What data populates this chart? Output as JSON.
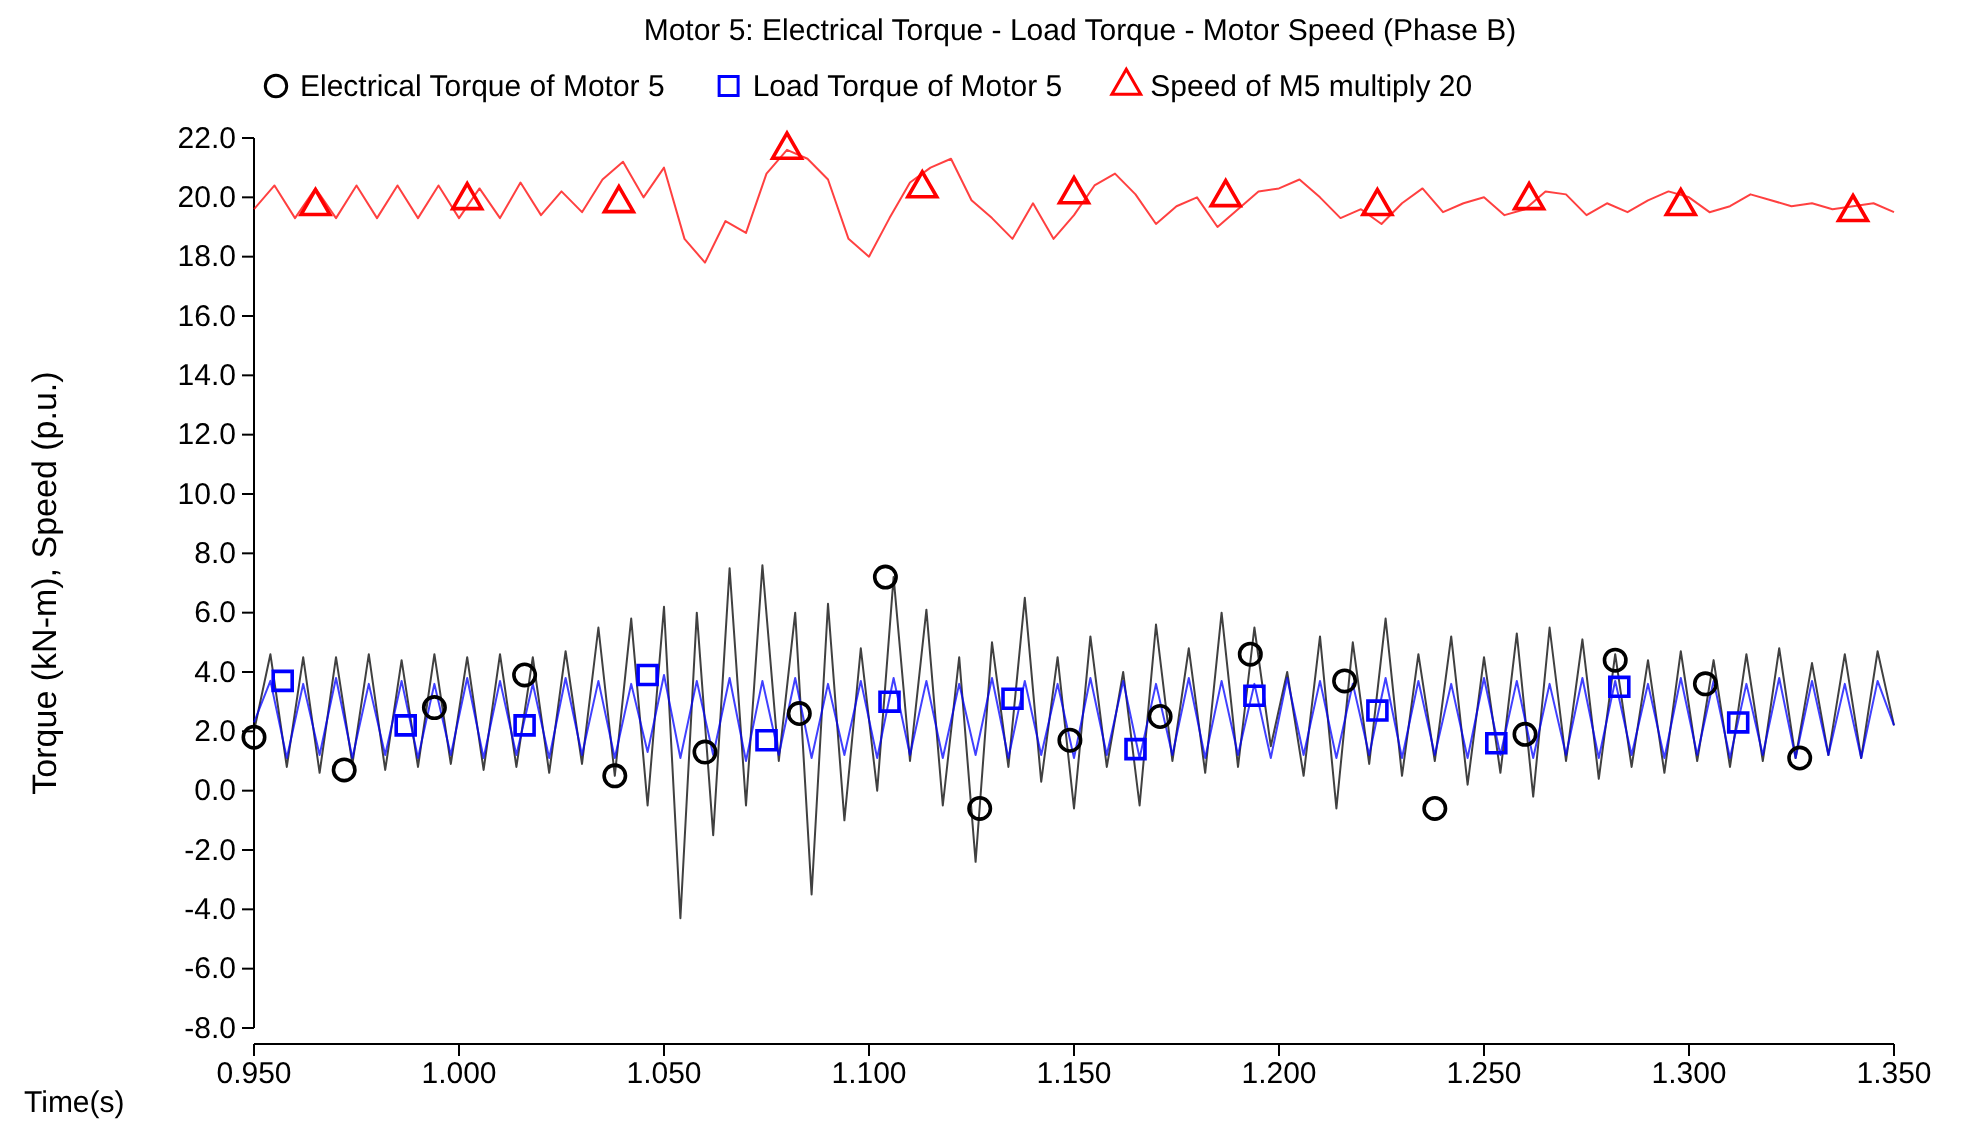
{
  "chart_data": {
    "type": "line",
    "title": "Motor 5: Electrical Torque - Load Torque - Motor Speed (Phase B)",
    "xlabel": "Time(s)",
    "ylabel": "Torque (kN-m), Speed (p.u.)",
    "x": [
      0.95,
      0.954,
      0.958,
      0.962,
      0.966,
      0.97,
      0.974,
      0.978,
      0.982,
      0.986,
      0.99,
      0.994,
      0.998,
      1.002,
      1.006,
      1.01,
      1.014,
      1.018,
      1.022,
      1.026,
      1.03,
      1.034,
      1.038,
      1.042,
      1.046,
      1.05,
      1.054,
      1.058,
      1.062,
      1.066,
      1.07,
      1.074,
      1.078,
      1.082,
      1.086,
      1.09,
      1.094,
      1.098,
      1.102,
      1.106,
      1.11,
      1.114,
      1.118,
      1.122,
      1.126,
      1.13,
      1.134,
      1.138,
      1.142,
      1.146,
      1.15,
      1.154,
      1.158,
      1.162,
      1.166,
      1.17,
      1.174,
      1.178,
      1.182,
      1.186,
      1.19,
      1.194,
      1.198,
      1.202,
      1.206,
      1.21,
      1.214,
      1.218,
      1.222,
      1.226,
      1.23,
      1.234,
      1.238,
      1.242,
      1.246,
      1.25,
      1.254,
      1.258,
      1.262,
      1.266,
      1.27,
      1.274,
      1.278,
      1.282,
      1.286,
      1.29,
      1.294,
      1.298,
      1.302,
      1.306,
      1.31,
      1.314,
      1.318,
      1.322,
      1.326,
      1.33,
      1.334,
      1.338,
      1.342,
      1.346,
      1.35
    ],
    "series": [
      {
        "name": "Electrical Torque of Motor 5",
        "color": "#000000",
        "values": [
          2.0,
          4.6,
          0.8,
          4.5,
          0.6,
          4.5,
          0.9,
          4.6,
          0.7,
          4.4,
          0.8,
          4.6,
          0.9,
          4.5,
          0.7,
          4.6,
          0.8,
          4.5,
          0.6,
          4.7,
          0.9,
          5.5,
          0.5,
          5.8,
          -0.5,
          6.2,
          -4.3,
          6.0,
          -1.5,
          7.5,
          -0.5,
          7.6,
          1.0,
          6.0,
          -3.5,
          6.3,
          -1.0,
          4.8,
          0.0,
          7.2,
          1.0,
          6.1,
          -0.5,
          4.5,
          -2.4,
          5.0,
          0.8,
          6.5,
          0.3,
          4.5,
          -0.6,
          5.2,
          0.8,
          4.0,
          -0.5,
          5.6,
          1.0,
          4.8,
          0.6,
          6.0,
          0.8,
          5.5,
          1.5,
          4.0,
          0.5,
          5.2,
          -0.6,
          5.0,
          0.9,
          5.8,
          0.5,
          4.6,
          1.0,
          5.2,
          0.2,
          4.5,
          0.6,
          5.3,
          -0.2,
          5.5,
          1.0,
          5.1,
          0.4,
          4.6,
          0.8,
          4.4,
          0.6,
          4.7,
          1.0,
          4.4,
          0.8,
          4.6,
          1.0,
          4.8,
          1.1,
          4.3,
          1.2,
          4.6,
          1.1,
          4.7,
          2.2
        ]
      },
      {
        "name": "Load Torque of Motor 5",
        "color": "#0000ff",
        "values": [
          2.3,
          3.7,
          1.1,
          3.6,
          1.2,
          3.8,
          1.1,
          3.6,
          1.2,
          3.7,
          1.1,
          3.6,
          1.2,
          3.8,
          1.1,
          3.7,
          1.2,
          3.6,
          1.1,
          3.8,
          1.2,
          3.7,
          1.1,
          3.6,
          1.3,
          3.9,
          1.1,
          3.7,
          1.2,
          3.8,
          1.0,
          3.7,
          1.2,
          3.8,
          1.1,
          3.6,
          1.2,
          3.7,
          1.1,
          3.8,
          1.2,
          3.7,
          1.1,
          3.6,
          1.2,
          3.8,
          1.1,
          3.7,
          1.2,
          3.6,
          1.1,
          3.8,
          1.2,
          3.7,
          1.1,
          3.6,
          1.2,
          3.8,
          1.1,
          3.7,
          1.2,
          3.6,
          1.1,
          3.8,
          1.2,
          3.7,
          1.1,
          3.6,
          1.2,
          3.8,
          1.1,
          3.7,
          1.2,
          3.6,
          1.1,
          3.8,
          1.2,
          3.7,
          1.1,
          3.6,
          1.2,
          3.8,
          1.1,
          3.7,
          1.2,
          3.6,
          1.1,
          3.8,
          1.2,
          3.7,
          1.1,
          3.6,
          1.2,
          3.8,
          1.1,
          3.7,
          1.2,
          3.6,
          1.1,
          3.7,
          2.2
        ]
      },
      {
        "name": "Speed of M5   multiply 20",
        "color": "#ff0000",
        "x": [
          0.95,
          0.955,
          0.96,
          0.965,
          0.97,
          0.975,
          0.98,
          0.985,
          0.99,
          0.995,
          1.0,
          1.005,
          1.01,
          1.015,
          1.02,
          1.025,
          1.03,
          1.035,
          1.04,
          1.045,
          1.05,
          1.055,
          1.06,
          1.065,
          1.07,
          1.075,
          1.08,
          1.085,
          1.09,
          1.095,
          1.1,
          1.105,
          1.11,
          1.115,
          1.12,
          1.125,
          1.13,
          1.135,
          1.14,
          1.145,
          1.15,
          1.155,
          1.16,
          1.165,
          1.17,
          1.175,
          1.18,
          1.185,
          1.19,
          1.195,
          1.2,
          1.205,
          1.21,
          1.215,
          1.22,
          1.225,
          1.23,
          1.235,
          1.24,
          1.245,
          1.25,
          1.255,
          1.26,
          1.265,
          1.27,
          1.275,
          1.28,
          1.285,
          1.29,
          1.295,
          1.3,
          1.305,
          1.31,
          1.315,
          1.32,
          1.325,
          1.33,
          1.335,
          1.34,
          1.345,
          1.35
        ],
        "values": [
          19.6,
          20.4,
          19.3,
          20.3,
          19.3,
          20.4,
          19.3,
          20.4,
          19.3,
          20.4,
          19.3,
          20.3,
          19.3,
          20.5,
          19.4,
          20.2,
          19.5,
          20.6,
          21.2,
          20.0,
          21.0,
          18.6,
          17.8,
          19.2,
          18.8,
          20.8,
          21.6,
          21.3,
          20.6,
          18.6,
          18.0,
          19.3,
          20.5,
          21.0,
          21.3,
          19.9,
          19.3,
          18.6,
          19.8,
          18.6,
          19.4,
          20.4,
          20.8,
          20.1,
          19.1,
          19.7,
          20.0,
          19.0,
          19.6,
          20.2,
          20.3,
          20.6,
          20.0,
          19.3,
          19.6,
          19.1,
          19.8,
          20.3,
          19.5,
          19.8,
          20.0,
          19.4,
          19.6,
          20.2,
          20.1,
          19.4,
          19.8,
          19.5,
          19.9,
          20.2,
          20.0,
          19.5,
          19.7,
          20.1,
          19.9,
          19.7,
          19.8,
          19.6,
          19.7,
          19.8,
          19.5
        ]
      },
      {
        "type": "scatter",
        "color": "#000000",
        "marker": "circle",
        "x": [
          0.95,
          0.972,
          0.994,
          1.016,
          1.038,
          1.06,
          1.083,
          1.104,
          1.127,
          1.149,
          1.171,
          1.193,
          1.216,
          1.238,
          1.26,
          1.282,
          1.304,
          1.327
        ],
        "values": [
          1.8,
          0.7,
          2.8,
          3.9,
          0.5,
          1.3,
          2.6,
          7.2,
          -0.6,
          1.7,
          2.5,
          4.6,
          3.7,
          -0.6,
          1.9,
          4.4,
          3.6,
          1.1
        ]
      },
      {
        "type": "scatter",
        "color": "#0000ff",
        "marker": "square",
        "x": [
          0.957,
          0.987,
          1.016,
          1.046,
          1.075,
          1.105,
          1.135,
          1.165,
          1.194,
          1.224,
          1.253,
          1.283,
          1.312
        ],
        "values": [
          3.7,
          2.2,
          2.2,
          3.9,
          1.7,
          3.0,
          3.1,
          1.4,
          3.2,
          2.7,
          1.6,
          3.5,
          2.3
        ]
      },
      {
        "type": "scatter",
        "color": "#ff0000",
        "marker": "triangle",
        "x": [
          0.965,
          1.002,
          1.039,
          1.08,
          1.113,
          1.15,
          1.187,
          1.224,
          1.261,
          1.298,
          1.34
        ],
        "values": [
          19.7,
          19.9,
          19.8,
          21.6,
          20.3,
          20.1,
          20.0,
          19.7,
          19.9,
          19.7,
          19.5
        ]
      }
    ],
    "xlim": [
      0.95,
      1.35
    ],
    "xticks": [
      {
        "value": 0.95,
        "label": "0.950"
      },
      {
        "value": 1.0,
        "label": "1.000"
      },
      {
        "value": 1.05,
        "label": "1.050"
      },
      {
        "value": 1.1,
        "label": "1.100"
      },
      {
        "value": 1.15,
        "label": "1.150"
      },
      {
        "value": 1.2,
        "label": "1.200"
      },
      {
        "value": 1.25,
        "label": "1.250"
      },
      {
        "value": 1.3,
        "label": "1.300"
      },
      {
        "value": 1.35,
        "label": "1.350"
      }
    ],
    "ylim": [
      -8,
      22
    ],
    "yticks": [
      {
        "value": -8,
        "label": "-8.0"
      },
      {
        "value": -6,
        "label": "-6.0"
      },
      {
        "value": -4,
        "label": "-4.0"
      },
      {
        "value": -2,
        "label": "-2.0"
      },
      {
        "value": 0,
        "label": "0.0"
      },
      {
        "value": 2,
        "label": "2.0"
      },
      {
        "value": 4,
        "label": "4.0"
      },
      {
        "value": 6,
        "label": "6.0"
      },
      {
        "value": 8,
        "label": "8.0"
      },
      {
        "value": 10,
        "label": "10.0"
      },
      {
        "value": 12,
        "label": "12.0"
      },
      {
        "value": 14,
        "label": "14.0"
      },
      {
        "value": 16,
        "label": "16.0"
      },
      {
        "value": 18,
        "label": "18.0"
      },
      {
        "value": 20,
        "label": "20.0"
      },
      {
        "value": 22,
        "label": "22.0"
      }
    ],
    "grid": false,
    "legend": "top"
  }
}
